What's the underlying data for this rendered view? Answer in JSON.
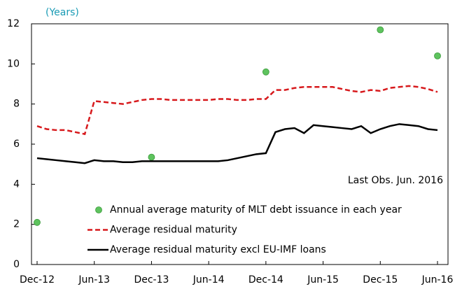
{
  "chart_data": {
    "type": "line",
    "subtitle": "(Years)",
    "categories": [
      "Dec-12",
      null,
      null,
      null,
      null,
      null,
      "Jun-13",
      null,
      null,
      null,
      null,
      null,
      "Dec-13",
      null,
      null,
      null,
      null,
      null,
      "Jun-14",
      null,
      null,
      null,
      null,
      null,
      "Dec-14",
      null,
      null,
      null,
      null,
      null,
      "Jun-15",
      null,
      null,
      null,
      null,
      null,
      "Dec-15",
      null,
      null,
      null,
      null,
      null,
      "Jun-16"
    ],
    "series": [
      {
        "name": "Annual average maturity of MLT debt issuance in each year",
        "color": "#5ec35e",
        "line_style": "none",
        "marker": "circle",
        "values": [
          2.1,
          null,
          null,
          null,
          null,
          null,
          null,
          null,
          null,
          null,
          null,
          null,
          5.35,
          null,
          null,
          null,
          null,
          null,
          null,
          null,
          null,
          null,
          null,
          null,
          9.6,
          null,
          null,
          null,
          null,
          null,
          null,
          null,
          null,
          null,
          null,
          null,
          11.7,
          null,
          null,
          null,
          null,
          null,
          10.4
        ]
      },
      {
        "name": "Average residual maturity",
        "color": "#d7191c",
        "line_style": "dashed",
        "marker": "none",
        "values": [
          6.9,
          6.75,
          6.7,
          6.7,
          6.6,
          6.5,
          8.15,
          8.1,
          8.05,
          8.0,
          8.1,
          8.2,
          8.25,
          8.25,
          8.2,
          8.2,
          8.2,
          8.2,
          8.2,
          8.25,
          8.25,
          8.2,
          8.2,
          8.25,
          8.25,
          8.7,
          8.7,
          8.8,
          8.85,
          8.85,
          8.85,
          8.85,
          8.75,
          8.65,
          8.6,
          8.7,
          8.65,
          8.8,
          8.85,
          8.9,
          8.85,
          8.75,
          8.6
        ]
      },
      {
        "name": "Average residual maturity excl EU-IMF loans",
        "color": "#000000",
        "line_style": "solid",
        "marker": "none",
        "values": [
          5.3,
          5.25,
          5.2,
          5.15,
          5.1,
          5.05,
          5.2,
          5.15,
          5.15,
          5.1,
          5.1,
          5.15,
          5.15,
          5.15,
          5.15,
          5.15,
          5.15,
          5.15,
          5.15,
          5.15,
          5.2,
          5.3,
          5.4,
          5.5,
          5.55,
          6.6,
          6.75,
          6.8,
          6.55,
          6.95,
          6.9,
          6.85,
          6.8,
          6.75,
          6.9,
          6.55,
          6.75,
          6.9,
          7.0,
          6.95,
          6.9,
          6.75,
          6.7
        ]
      }
    ],
    "annotation": "Last Obs. Jun. 2016",
    "ylim": [
      0,
      12
    ],
    "yticks": [
      0,
      2,
      4,
      6,
      8,
      10,
      12
    ],
    "grid": false
  }
}
